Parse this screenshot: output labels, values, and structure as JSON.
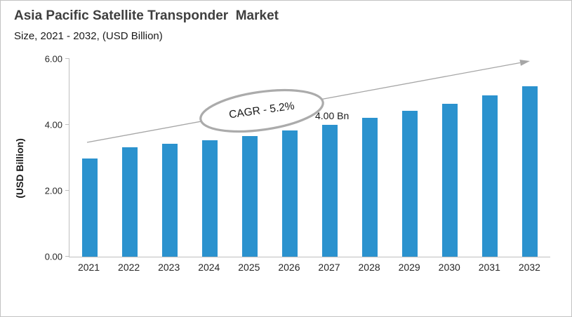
{
  "window": {
    "background": "#ffffff",
    "border_color": "#c3c3c3"
  },
  "header": {
    "title": "Asia Pacific Satellite Transponder  Market",
    "subtitle": "Size, 2021 - 2032, (USD Billion)"
  },
  "annotations": {
    "cagr_label": "CAGR - 5.2%",
    "data_label": "4.00 Bn",
    "data_label_category": "2027"
  },
  "chart_data": {
    "type": "bar",
    "title": "Asia Pacific Satellite Transponder Market",
    "subtitle": "Size, 2021 - 2032, (USD Billion)",
    "categories": [
      "2021",
      "2022",
      "2023",
      "2024",
      "2025",
      "2026",
      "2027",
      "2028",
      "2029",
      "2030",
      "2031",
      "2032"
    ],
    "values": [
      2.97,
      3.31,
      3.42,
      3.54,
      3.67,
      3.82,
      4.0,
      4.21,
      4.42,
      4.63,
      4.89,
      5.16
    ],
    "xlabel": "",
    "ylabel": "(USD Billion)",
    "ylim": [
      0,
      6
    ],
    "yticks": [
      0,
      2,
      4,
      6
    ],
    "ytick_labels": [
      "0.00",
      "2.00",
      "4.00",
      "6.00"
    ],
    "grid": false,
    "legend": "none",
    "bar_color": "#2b92ce",
    "axis_color": "#bfbfbf",
    "arrow_color": "#a6a6a6",
    "ellipse_stroke_color": "#ababab",
    "ellipse_fill": "#ffffff",
    "annotations": [
      {
        "shape": "ellipse",
        "text": "CAGR - 5.2%",
        "location": "above bars 2025-2026"
      },
      {
        "shape": "data_label",
        "text": "4.00 Bn",
        "category": "2027"
      }
    ],
    "trend_arrow": {
      "direction": "up",
      "from_category": "2021",
      "to_category": "2032"
    }
  }
}
